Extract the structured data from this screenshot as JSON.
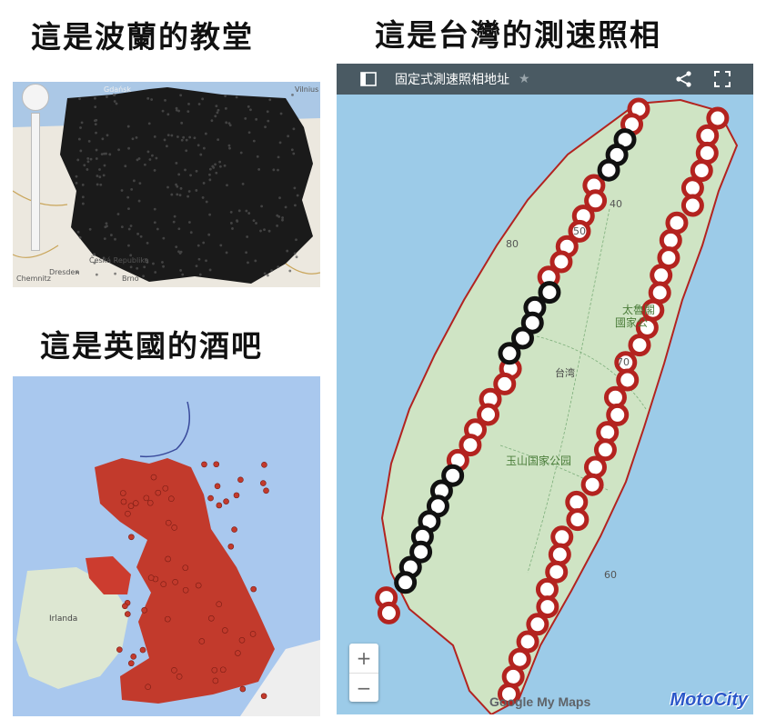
{
  "captions": {
    "poland": "這是波蘭的教堂",
    "taiwan": "這是台灣的測速照相",
    "uk": "這是英國的酒吧"
  },
  "taiwan_map": {
    "toolbar": {
      "title": "固定式測速照相地址",
      "sidebar_icon": "sidebar-toggle-icon",
      "star_icon": "star-icon",
      "share_icon": "share-icon",
      "fullscreen_icon": "fullscreen-icon"
    },
    "labels": {
      "taroko": "太魯閣",
      "taroko_park": "國家公",
      "taiwan": "台湾",
      "yushan": "玉山国家公园"
    },
    "speed_labels": [
      "50",
      "70",
      "40",
      "60",
      "80"
    ],
    "zoom": {
      "in": "+",
      "out": "−"
    },
    "attribution": "Google My Maps",
    "watermark": "MotoCity",
    "colors": {
      "land": "#cfe4c4",
      "sea": "#9ccbe8",
      "red_marker": "#b3231f",
      "black_marker": "#111111"
    }
  },
  "poland_map": {
    "labels": [
      "Vilnius",
      "Gdańsk",
      "Dresden",
      "Chemnitz",
      "Česká Republika",
      "Brno"
    ]
  },
  "uk_map": {
    "labels": [
      "Irlanda"
    ],
    "colors": {
      "pubs": "#c23a2c",
      "sea": "#a9c8ee"
    }
  }
}
